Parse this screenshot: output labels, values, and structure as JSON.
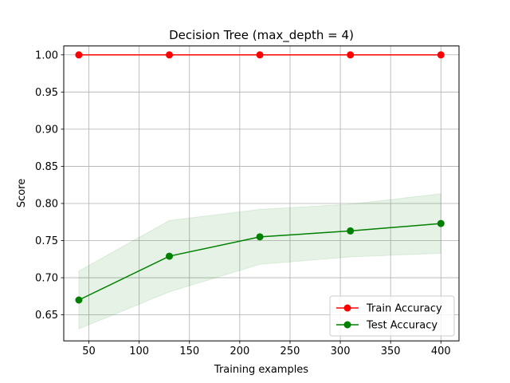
{
  "chart_data": {
    "type": "line",
    "title": "Decision Tree (max_depth = 4)",
    "xlabel": "Training examples",
    "ylabel": "Score",
    "x": [
      40,
      130,
      220,
      310,
      400
    ],
    "xlim": [
      25,
      418
    ],
    "ylim": [
      0.615,
      1.012
    ],
    "xticks": [
      50,
      100,
      150,
      200,
      250,
      300,
      350,
      400
    ],
    "yticks": [
      0.65,
      0.7,
      0.75,
      0.8,
      0.85,
      0.9,
      0.95,
      1.0
    ],
    "grid": true,
    "legend_position": "bottom-right",
    "series": [
      {
        "name": "Train Accuracy",
        "color": "#ff0000",
        "values": [
          1.0,
          1.0,
          1.0,
          1.0,
          1.0
        ],
        "band_lower": [
          1.0,
          1.0,
          1.0,
          1.0,
          1.0
        ],
        "band_upper": [
          1.0,
          1.0,
          1.0,
          1.0,
          1.0
        ]
      },
      {
        "name": "Test Accuracy",
        "color": "#008000",
        "values": [
          0.67,
          0.729,
          0.755,
          0.763,
          0.773
        ],
        "band_lower": [
          0.631,
          0.681,
          0.718,
          0.728,
          0.733
        ],
        "band_upper": [
          0.709,
          0.777,
          0.792,
          0.799,
          0.813
        ]
      }
    ]
  }
}
